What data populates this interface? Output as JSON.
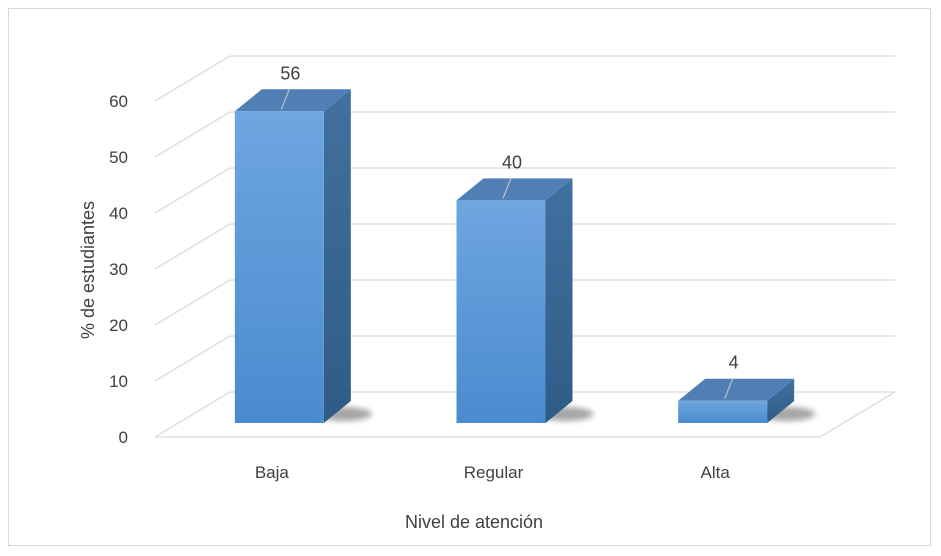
{
  "chart_data": {
    "type": "bar",
    "categories": [
      "Baja",
      "Regular",
      "Alta"
    ],
    "values": [
      56,
      40,
      4
    ],
    "data_labels": [
      "56",
      "40",
      "4"
    ],
    "title": "",
    "xlabel": "Nivel de atención",
    "ylabel": "% de estudiantes",
    "ylim": [
      0,
      70
    ],
    "yticks": [
      0,
      10,
      20,
      30,
      40,
      50,
      60
    ],
    "ytick_labels": [
      "0",
      "10",
      "20",
      "30",
      "40",
      "50",
      "60"
    ],
    "grid": true,
    "legend": "none",
    "style": "3d-column",
    "colors": {
      "bar_front": "#5b9bd5",
      "bar_top": "#4f7fb5",
      "bar_side": "#3b6a9e",
      "grid": "#d9d9d9",
      "text": "#404040"
    }
  }
}
